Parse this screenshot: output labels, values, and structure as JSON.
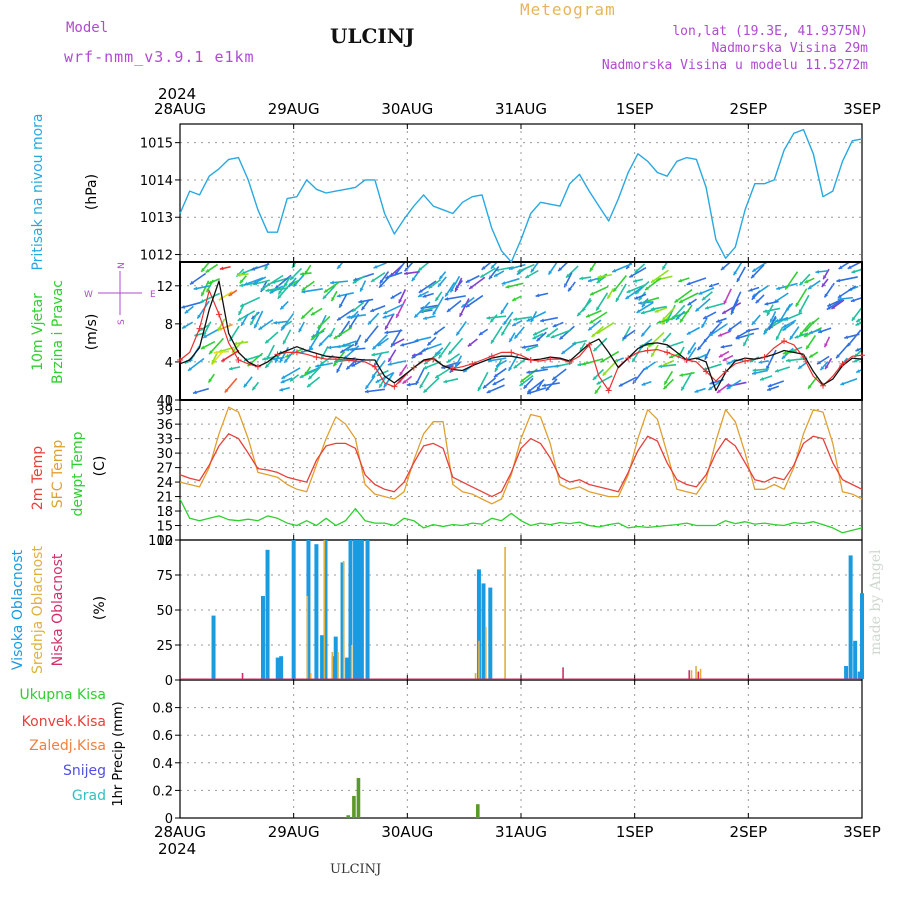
{
  "header": {
    "model_label": "Model",
    "model_name": "wrf-nmm_v3.9.1 e1km",
    "meteogram_label": "Meteogram",
    "station": "ULCINJ",
    "coords": "lon,lat (19.3E, 41.9375N)",
    "elevation": "Nadmorska Visina 29m",
    "model_elevation": "Nadmorska Visina u modelu 11.5272m",
    "footer_station": "ULCINJ",
    "watermark": "made by Angel"
  },
  "time_axis": {
    "year": "2024",
    "ticks": [
      "28AUG",
      "29AUG",
      "30AUG",
      "31AUG",
      "1SEP",
      "2SEP",
      "3SEP"
    ]
  },
  "colors": {
    "pressure": "#29a8e0",
    "temp2m": "#e8403a",
    "sfc_temp": "#e0a030",
    "dewpoint": "#2fcf30",
    "high_cloud": "#1a9be0",
    "mid_cloud": "#e0b040",
    "low_cloud": "#d0306a",
    "precip": "#5a9a2a",
    "label_purple": "#b04ad0"
  },
  "chart_data": [
    {
      "type": "line",
      "panel": "pressure",
      "ylabel_rotated": "Pritisak na nivou mora",
      "unit": "(hPa)",
      "ylim": [
        1011.8,
        1015.5
      ],
      "yticks": [
        1012,
        1013,
        1014,
        1015
      ],
      "grid": true,
      "series": [
        {
          "values": [
            1013.1,
            1013.7,
            1013.6,
            1014.1,
            1014.3,
            1014.55,
            1014.6,
            1014.0,
            1013.2,
            1012.6,
            1012.6,
            1013.5,
            1013.55,
            1014.0,
            1013.75,
            1013.65,
            1013.7,
            1013.75,
            1013.8,
            1014.0,
            1014.0,
            1013.1,
            1012.55,
            1012.95,
            1013.3,
            1013.6,
            1013.3,
            1013.2,
            1013.1,
            1013.4,
            1013.55,
            1013.6,
            1012.7,
            1012.1,
            1011.8,
            1012.4,
            1013.1,
            1013.4,
            1013.35,
            1013.3,
            1013.9,
            1014.15,
            1013.7,
            1013.3,
            1012.9,
            1013.5,
            1014.2,
            1014.7,
            1014.5,
            1014.2,
            1014.1,
            1014.5,
            1014.6,
            1014.55,
            1013.8,
            1012.4,
            1011.9,
            1012.2,
            1013.2,
            1013.9,
            1013.9,
            1014.0,
            1014.8,
            1015.25,
            1015.35,
            1014.7,
            1013.55,
            1013.7,
            1014.5,
            1015.05,
            1015.1
          ]
        }
      ]
    },
    {
      "type": "line",
      "panel": "wind",
      "ylabel_rotated": [
        "10m Vjetar",
        "Brzina i Pravac"
      ],
      "unit": "(m/s)",
      "ylim": [
        0,
        14.5
      ],
      "yticks": [
        0,
        4,
        8,
        12
      ],
      "grid": true,
      "compass": [
        "N",
        "S",
        "W",
        "E"
      ],
      "series": [
        {
          "values": [
            3.8,
            4.2,
            5.5,
            9.5,
            12.5,
            7.0,
            5.0,
            4.0,
            3.5,
            4.0,
            4.8,
            5.2,
            5.6,
            5.2,
            4.9,
            4.6,
            4.5,
            4.4,
            4.3,
            4.2,
            4.2,
            2.5,
            1.8,
            2.6,
            3.4,
            4.2,
            4.4,
            3.6,
            3.2,
            3.1,
            3.6,
            4.0,
            4.4,
            4.6,
            4.6,
            4.4,
            4.2,
            4.3,
            4.5,
            4.4,
            4.1,
            5.0,
            5.9,
            6.4,
            5.0,
            3.4,
            4.4,
            5.4,
            5.9,
            6.0,
            5.8,
            5.0,
            4.2,
            4.4,
            4.0,
            1.0,
            2.9,
            4.1,
            4.4,
            4.3,
            4.5,
            4.8,
            5.2,
            5.0,
            4.8,
            3.0,
            1.6,
            2.2,
            3.6,
            4.4,
            4.3
          ]
        },
        {
          "values": [
            4.2,
            5.0,
            7.5,
            11.5,
            9.0,
            6.0,
            4.2,
            3.8,
            3.5,
            4.0,
            4.8,
            5.0,
            5.0,
            4.8,
            4.5,
            4.3,
            4.3,
            4.2,
            4.1,
            4.0,
            3.5,
            1.8,
            1.4,
            2.5,
            3.4,
            4.1,
            4.3,
            3.6,
            3.3,
            3.5,
            3.8,
            4.2,
            4.6,
            5.0,
            5.0,
            4.7,
            4.2,
            4.1,
            4.3,
            4.3,
            4.0,
            4.6,
            5.8,
            2.5,
            1.0,
            3.5,
            4.4,
            5.0,
            5.2,
            5.3,
            5.0,
            4.6,
            4.2,
            4.0,
            3.0,
            2.0,
            3.0,
            3.8,
            4.1,
            4.3,
            4.5,
            5.5,
            6.2,
            5.8,
            4.5,
            2.5,
            1.5,
            2.5,
            3.8,
            4.6,
            4.7
          ]
        }
      ]
    },
    {
      "type": "line",
      "panel": "temperature",
      "ylabel_rotated": [
        "2m Temp",
        "SFC Temp",
        "dewpt Temp"
      ],
      "unit": "(C)",
      "ylim": [
        12,
        41
      ],
      "yticks": [
        12,
        15,
        18,
        21,
        24,
        27,
        30,
        33,
        36,
        39,
        41
      ],
      "grid": true,
      "series": [
        {
          "values": [
            25.5,
            24.8,
            24.3,
            27.5,
            31.5,
            34.0,
            33.0,
            30.0,
            26.8,
            26.5,
            26.0,
            25.0,
            24.5,
            24.0,
            28.5,
            31.5,
            32.0,
            32.0,
            31.0,
            25.5,
            23.5,
            22.5,
            22.0,
            24.0,
            28.0,
            31.5,
            32.0,
            31.0,
            25.0,
            24.0,
            23.0,
            22.0,
            21.0,
            22.0,
            26.0,
            31.0,
            33.0,
            32.0,
            29.0,
            25.0,
            24.0,
            24.5,
            23.5,
            23.0,
            22.5,
            22.0,
            26.0,
            30.5,
            33.5,
            32.5,
            28.0,
            24.5,
            23.5,
            23.0,
            25.5,
            30.0,
            33.0,
            31.5,
            28.0,
            24.5,
            24.0,
            25.0,
            24.5,
            27.5,
            32.0,
            33.5,
            33.0,
            28.0,
            24.5,
            23.5,
            22.5
          ]
        },
        {
          "values": [
            24.0,
            23.5,
            23.0,
            27.0,
            34.0,
            39.5,
            38.5,
            33.0,
            26.0,
            25.5,
            25.0,
            23.5,
            22.5,
            22.0,
            27.5,
            33.0,
            37.5,
            36.0,
            33.0,
            23.5,
            21.5,
            21.0,
            20.5,
            22.0,
            28.5,
            34.0,
            36.5,
            36.5,
            23.5,
            22.0,
            21.5,
            20.5,
            19.5,
            20.5,
            25.5,
            33.0,
            38.0,
            37.5,
            32.0,
            23.5,
            22.5,
            23.0,
            22.0,
            21.5,
            21.0,
            21.0,
            25.5,
            33.0,
            39.0,
            37.0,
            30.0,
            22.5,
            22.0,
            21.5,
            24.5,
            32.5,
            39.0,
            36.5,
            30.0,
            22.5,
            22.5,
            23.5,
            22.5,
            27.0,
            34.0,
            39.0,
            38.5,
            32.0,
            22.0,
            21.5,
            20.5
          ]
        },
        {
          "values": [
            20.5,
            16.5,
            16.0,
            16.5,
            17.0,
            16.2,
            16.0,
            16.3,
            16.0,
            17.0,
            16.5,
            15.5,
            15.0,
            16.0,
            15.0,
            16.5,
            15.0,
            16.0,
            18.5,
            16.0,
            15.5,
            15.5,
            15.0,
            16.5,
            16.0,
            14.5,
            15.2,
            14.8,
            15.2,
            15.0,
            15.5,
            15.3,
            16.5,
            16.0,
            17.5,
            16.0,
            15.0,
            15.5,
            15.2,
            15.6,
            15.4,
            15.7,
            15.0,
            14.7,
            15.2,
            15.5,
            14.5,
            14.8,
            14.6,
            14.8,
            15.0,
            15.2,
            15.5,
            15.0,
            15.0,
            15.0,
            16.0,
            15.4,
            15.8,
            15.3,
            15.5,
            15.2,
            15.0,
            15.6,
            15.4,
            15.8,
            15.2,
            14.5,
            13.5,
            14.0,
            14.5
          ]
        }
      ]
    },
    {
      "type": "bar",
      "panel": "cloud",
      "ylabel_rotated": [
        "Visoka Oblacnost",
        "Srednja Oblacnost",
        "Niska Oblacnost"
      ],
      "unit": "(%)",
      "ylim": [
        0,
        100
      ],
      "yticks": [
        0,
        25,
        50,
        75,
        100
      ],
      "grid": true,
      "series": [
        {
          "points": [
            [
              0.295,
              46
            ],
            [
              0.73,
              60
            ],
            [
              0.77,
              93
            ],
            [
              0.86,
              16
            ],
            [
              0.89,
              17
            ],
            [
              1.0,
              100
            ],
            [
              1.13,
              100
            ],
            [
              1.2,
              97
            ],
            [
              1.25,
              32
            ],
            [
              1.27,
              14
            ],
            [
              1.28,
              100
            ],
            [
              1.35,
              17
            ],
            [
              1.37,
              31
            ],
            [
              1.43,
              84
            ],
            [
              1.47,
              16
            ],
            [
              1.5,
              100
            ],
            [
              1.54,
              100
            ],
            [
              1.57,
              100
            ],
            [
              1.6,
              100
            ],
            [
              1.65,
              100
            ],
            [
              2.63,
              79
            ],
            [
              2.67,
              69
            ],
            [
              2.73,
              66
            ],
            [
              5.86,
              10
            ],
            [
              5.9,
              89
            ],
            [
              5.94,
              28
            ],
            [
              5.98,
              6
            ],
            [
              6.0,
              62
            ]
          ]
        },
        {
          "points": [
            [
              1.12,
              60
            ],
            [
              1.15,
              5
            ],
            [
              1.27,
              100
            ],
            [
              1.34,
              20
            ],
            [
              1.39,
              20
            ],
            [
              1.44,
              85
            ],
            [
              1.51,
              25
            ],
            [
              2.6,
              5
            ],
            [
              2.63,
              28
            ],
            [
              2.69,
              38
            ],
            [
              2.86,
              95
            ],
            [
              4.5,
              7
            ],
            [
              4.54,
              10
            ],
            [
              4.58,
              8
            ]
          ]
        },
        {
          "points": [
            [
              0.55,
              5
            ],
            [
              3.37,
              9
            ],
            [
              4.48,
              7
            ],
            [
              4.56,
              6
            ]
          ]
        }
      ]
    },
    {
      "type": "bar",
      "panel": "precip",
      "ylabel_rotated": "1hr Precip (mm)",
      "legend_labels": [
        "Ukupna Kisa",
        "Konvek.Kisa",
        "Zaledj.Kisa",
        "Snijeg",
        "Grad"
      ],
      "ylim": [
        0,
        1.0
      ],
      "yticks": [
        0,
        0.2,
        0.4,
        0.6,
        0.8
      ],
      "grid": true,
      "series": [
        {
          "points": [
            [
              1.48,
              0.02
            ],
            [
              1.53,
              0.16
            ],
            [
              1.57,
              0.29
            ],
            [
              2.62,
              0.1
            ]
          ]
        }
      ]
    }
  ]
}
